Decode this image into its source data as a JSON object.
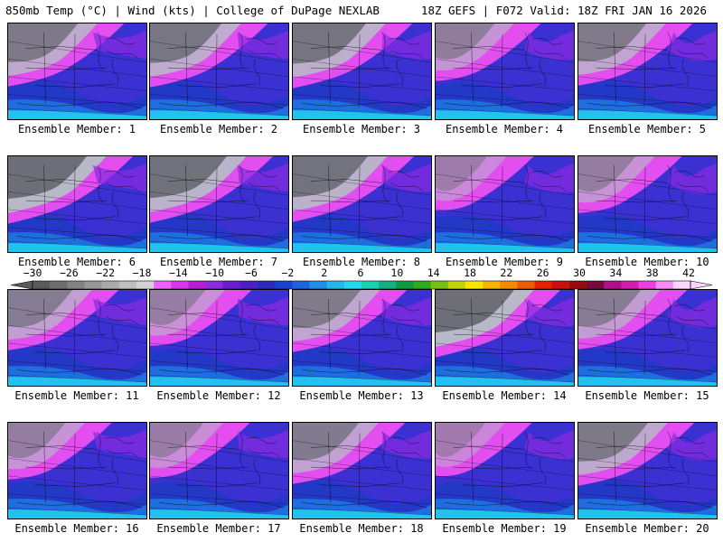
{
  "header": {
    "left": "850mb Temp (°C) | Wind (kts) | College of DuPage NEXLAB",
    "right": "18Z GEFS | F072 Valid: 18Z FRI JAN 16 2026"
  },
  "colorbar": {
    "labels": [
      "−30",
      "−26",
      "−22",
      "−18",
      "−14",
      "−10",
      "−6",
      "−2",
      "2",
      "6",
      "10",
      "14",
      "18",
      "22",
      "26",
      "30",
      "34",
      "38",
      "42"
    ],
    "colors": [
      "#5a5a5a",
      "#6e6e6e",
      "#828282",
      "#969696",
      "#aaaaaa",
      "#bfbfbf",
      "#d2d2d2",
      "#ee60ff",
      "#dd33ee",
      "#b91cd6",
      "#8a2be2",
      "#6a1bd6",
      "#4d1fc8",
      "#2a2ac0",
      "#1c3fd4",
      "#1e63e0",
      "#1f8ee8",
      "#22b8ee",
      "#24d6f0",
      "#19d0b0",
      "#10b080",
      "#0d9a40",
      "#2caa20",
      "#77c012",
      "#c4d40c",
      "#f4e600",
      "#f6b400",
      "#f68a00",
      "#f05a00",
      "#e42200",
      "#c81010",
      "#9a0a0a",
      "#760a3a",
      "#b0108a",
      "#d81ab0",
      "#ee3ee0",
      "#f88af8",
      "#ffd4ff"
    ]
  },
  "members": [
    {
      "label": "Ensemble Member: 1",
      "cold": 0.75
    },
    {
      "label": "Ensemble Member: 2",
      "cold": 0.8
    },
    {
      "label": "Ensemble Member: 3",
      "cold": 0.85
    },
    {
      "label": "Ensemble Member: 4",
      "cold": 0.45
    },
    {
      "label": "Ensemble Member: 5",
      "cold": 0.7
    },
    {
      "label": "Ensemble Member: 6",
      "cold": 1.0
    },
    {
      "label": "Ensemble Member: 7",
      "cold": 0.95
    },
    {
      "label": "Ensemble Member: 8",
      "cold": 0.9
    },
    {
      "label": "Ensemble Member: 9",
      "cold": 0.25
    },
    {
      "label": "Ensemble Member: 10",
      "cold": 0.4
    },
    {
      "label": "Ensemble Member: 11",
      "cold": 0.6
    },
    {
      "label": "Ensemble Member: 12",
      "cold": 0.35
    },
    {
      "label": "Ensemble Member: 13",
      "cold": 0.7
    },
    {
      "label": "Ensemble Member: 14",
      "cold": 1.0
    },
    {
      "label": "Ensemble Member: 15",
      "cold": 0.55
    },
    {
      "label": "Ensemble Member: 16",
      "cold": 0.4
    },
    {
      "label": "Ensemble Member: 17",
      "cold": 0.3
    },
    {
      "label": "Ensemble Member: 18",
      "cold": 0.65
    },
    {
      "label": "Ensemble Member: 19",
      "cold": 0.2
    },
    {
      "label": "Ensemble Member: 20",
      "cold": 0.75
    }
  ]
}
